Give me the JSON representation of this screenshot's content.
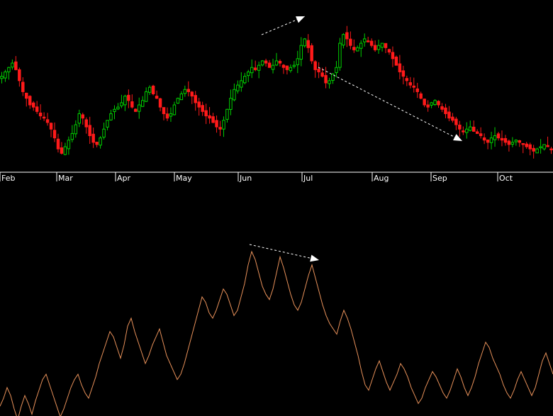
{
  "chart_data": [
    {
      "type": "candlestick",
      "panel": "price",
      "x_axis_labels": [
        "Feb",
        "Mar",
        "Apr",
        "May",
        "Jun",
        "Jul",
        "Aug",
        "Sep",
        "Oct"
      ],
      "colors": {
        "up": "#00d000",
        "down": "#ff1a1a",
        "background": "#000000",
        "axis": "#ffffff",
        "annotation": "#ffffff"
      },
      "annotations": [
        {
          "type": "dashed-arrow",
          "from": {
            "x": "Jun (mid)",
            "level": "recent high"
          },
          "to": {
            "x": "Jul (start)",
            "level": "new high"
          }
        },
        {
          "type": "dashed-arrow",
          "from": {
            "x": "Jul",
            "level": "after peak"
          },
          "to": {
            "x": "Sep (late)",
            "level": "declining"
          }
        }
      ],
      "candles_close": [
        41,
        43,
        45,
        47,
        44,
        39,
        34,
        31,
        28,
        27,
        25,
        23,
        22,
        20,
        17,
        13,
        8,
        6,
        9,
        12,
        15,
        19,
        24,
        22,
        18,
        14,
        11,
        10,
        13,
        17,
        21,
        24,
        26,
        27,
        29,
        32,
        30,
        27,
        25,
        28,
        30,
        34,
        36,
        33,
        31,
        27,
        24,
        22,
        24,
        28,
        31,
        33,
        35,
        34,
        32,
        29,
        27,
        25,
        23,
        22,
        20,
        18,
        17,
        21,
        26,
        31,
        35,
        37,
        39,
        41,
        43,
        45,
        44,
        46,
        48,
        47,
        45,
        46,
        48,
        47,
        45,
        44,
        45,
        46,
        49,
        55,
        58,
        54,
        48,
        44,
        43,
        41,
        38,
        39,
        42,
        45,
        56,
        60,
        58,
        55,
        53,
        54,
        56,
        58,
        57,
        55,
        53,
        55,
        56,
        54,
        52,
        49,
        46,
        43,
        41,
        39,
        37,
        36,
        34,
        31,
        28,
        27,
        29,
        30,
        28,
        26,
        24,
        22,
        21,
        19,
        17,
        16,
        17,
        18,
        16,
        15,
        14,
        12,
        11,
        13,
        14,
        13,
        12,
        11,
        10,
        11,
        12,
        11,
        10,
        9,
        8,
        7,
        8,
        9,
        10,
        9,
        8
      ]
    },
    {
      "type": "line",
      "panel": "indicator",
      "color": "#e8915a",
      "annotations": [
        {
          "type": "dashed-arrow",
          "from": {
            "x": "Jun",
            "level": "indicator high"
          },
          "to": {
            "x": "Jul",
            "level": "lower indicator high"
          }
        }
      ],
      "values": [
        2,
        5,
        9,
        6,
        1,
        -3,
        2,
        6,
        3,
        -1,
        4,
        8,
        12,
        14,
        10,
        6,
        2,
        -2,
        1,
        5,
        9,
        12,
        14,
        10,
        7,
        5,
        9,
        13,
        18,
        22,
        26,
        30,
        28,
        24,
        20,
        25,
        32,
        35,
        30,
        26,
        22,
        18,
        21,
        25,
        28,
        31,
        26,
        21,
        18,
        15,
        12,
        14,
        18,
        23,
        28,
        33,
        38,
        43,
        41,
        37,
        35,
        38,
        42,
        46,
        44,
        40,
        36,
        38,
        43,
        48,
        55,
        60,
        57,
        52,
        47,
        44,
        42,
        46,
        52,
        58,
        54,
        49,
        44,
        40,
        38,
        41,
        46,
        51,
        55,
        50,
        45,
        40,
        36,
        33,
        31,
        29,
        34,
        38,
        35,
        31,
        26,
        21,
        15,
        10,
        8,
        12,
        16,
        19,
        15,
        11,
        8,
        11,
        14,
        18,
        16,
        13,
        9,
        6,
        3,
        5,
        9,
        12,
        15,
        13,
        10,
        7,
        5,
        8,
        12,
        16,
        13,
        9,
        6,
        9,
        13,
        18,
        22,
        26,
        24,
        20,
        17,
        14,
        10,
        7,
        5,
        8,
        12,
        15,
        12,
        9,
        6,
        9,
        14,
        19,
        22,
        18,
        14
      ]
    }
  ]
}
